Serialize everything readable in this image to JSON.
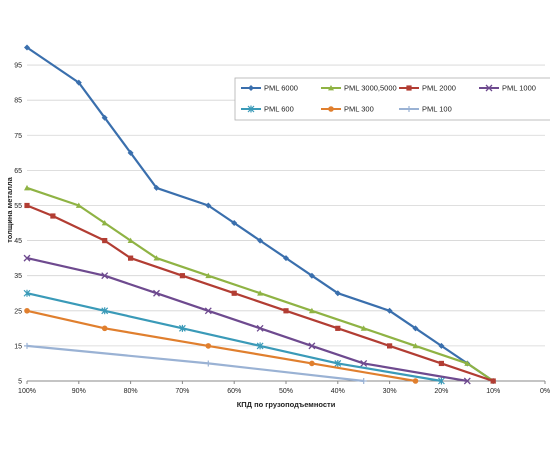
{
  "chart_data": {
    "type": "line",
    "title": "",
    "xlabel": "КПД по грузоподъемности",
    "ylabel": "толщина металла",
    "x_ticks": [
      100,
      90,
      80,
      70,
      60,
      50,
      40,
      30,
      20,
      10,
      0
    ],
    "x_tick_labels": [
      "100%",
      "90%",
      "80%",
      "70%",
      "60%",
      "50%",
      "40%",
      "30%",
      "20%",
      "10%",
      "0%"
    ],
    "xlim": [
      100,
      0
    ],
    "y_ticks": [
      5,
      15,
      25,
      35,
      45,
      55,
      65,
      75,
      85,
      95
    ],
    "ylim": [
      5,
      101
    ],
    "grid": true,
    "legend_position": "top-right",
    "series": [
      {
        "name": "PML 6000",
        "color": "#3a6fad",
        "marker": "diamond",
        "points": [
          [
            100,
            100
          ],
          [
            90,
            90
          ],
          [
            85,
            80
          ],
          [
            80,
            70
          ],
          [
            75,
            60
          ],
          [
            65,
            55
          ],
          [
            60,
            50
          ],
          [
            55,
            45
          ],
          [
            50,
            40
          ],
          [
            45,
            35
          ],
          [
            40,
            30
          ],
          [
            30,
            25
          ],
          [
            25,
            20
          ],
          [
            20,
            15
          ],
          [
            15,
            10
          ],
          [
            10,
            5
          ]
        ]
      },
      {
        "name": "PML 3000,5000",
        "color": "#8fb344",
        "marker": "triangle",
        "points": [
          [
            100,
            60
          ],
          [
            90,
            55
          ],
          [
            85,
            50
          ],
          [
            80,
            45
          ],
          [
            75,
            40
          ],
          [
            65,
            35
          ],
          [
            55,
            30
          ],
          [
            45,
            25
          ],
          [
            35,
            20
          ],
          [
            25,
            15
          ],
          [
            15,
            10
          ],
          [
            10,
            5
          ]
        ]
      },
      {
        "name": "PML 2000",
        "color": "#b23d33",
        "marker": "square",
        "points": [
          [
            100,
            55
          ],
          [
            95,
            52
          ],
          [
            85,
            45
          ],
          [
            80,
            40
          ],
          [
            70,
            35
          ],
          [
            60,
            30
          ],
          [
            50,
            25
          ],
          [
            40,
            20
          ],
          [
            30,
            15
          ],
          [
            20,
            10
          ],
          [
            10,
            5
          ]
        ]
      },
      {
        "name": "PML 1000",
        "color": "#6e4a8f",
        "marker": "x",
        "points": [
          [
            100,
            40
          ],
          [
            85,
            35
          ],
          [
            75,
            30
          ],
          [
            65,
            25
          ],
          [
            55,
            20
          ],
          [
            45,
            15
          ],
          [
            35,
            10
          ],
          [
            15,
            5
          ]
        ]
      },
      {
        "name": "PML 600",
        "color": "#3a9ab8",
        "marker": "star",
        "points": [
          [
            100,
            30
          ],
          [
            85,
            25
          ],
          [
            70,
            20
          ],
          [
            55,
            15
          ],
          [
            40,
            10
          ],
          [
            20,
            5
          ]
        ]
      },
      {
        "name": "PML 300",
        "color": "#e07f2e",
        "marker": "circle",
        "points": [
          [
            100,
            25
          ],
          [
            85,
            20
          ],
          [
            65,
            15
          ],
          [
            45,
            10
          ],
          [
            25,
            5
          ]
        ]
      },
      {
        "name": "PML 100",
        "color": "#9ab2d4",
        "marker": "plus",
        "points": [
          [
            100,
            15
          ],
          [
            65,
            10
          ],
          [
            35,
            5
          ]
        ]
      }
    ]
  }
}
